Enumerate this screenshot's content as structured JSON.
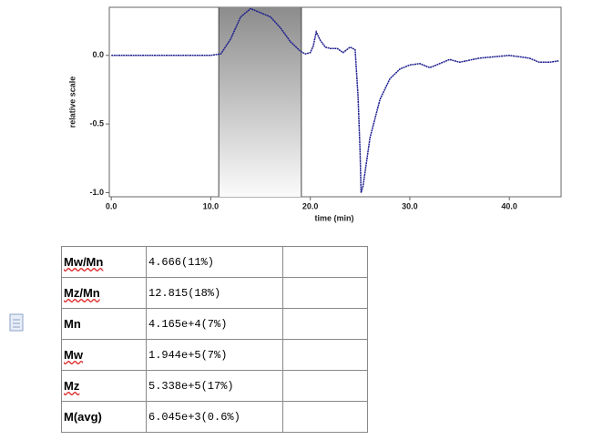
{
  "chart_data": {
    "type": "line",
    "ylabel": "relative scale",
    "xlabel": "time (min)",
    "x": [
      0,
      5,
      10,
      11,
      12,
      13,
      14,
      15,
      16,
      17,
      18,
      19,
      19.5,
      20,
      20.3,
      20.6,
      21,
      21.5,
      22,
      22.7,
      23.3,
      24,
      24.5,
      24.8,
      25,
      25.1,
      25.3,
      25.6,
      26,
      27,
      28,
      29,
      30,
      31,
      32,
      33,
      34,
      35,
      37,
      40,
      42,
      43,
      44,
      45
    ],
    "values": [
      0,
      0,
      0,
      0.01,
      0.12,
      0.28,
      0.34,
      0.31,
      0.28,
      0.2,
      0.1,
      0.03,
      0.01,
      0.02,
      0.07,
      0.17,
      0.11,
      0.06,
      0.05,
      0.05,
      0.02,
      0.06,
      0.04,
      -0.3,
      -0.7,
      -1.0,
      -0.95,
      -0.8,
      -0.6,
      -0.32,
      -0.17,
      -0.1,
      -0.07,
      -0.06,
      -0.09,
      -0.06,
      -0.03,
      -0.05,
      -0.02,
      0,
      -0.02,
      -0.05,
      -0.05,
      -0.04
    ],
    "color": "#1c1c8e",
    "shaded_range": [
      10.8,
      19.1
    ],
    "xlim": [
      -0.2,
      45.2
    ],
    "ylim": [
      -1.03,
      0.35
    ],
    "xticks": [
      {
        "value": 0,
        "label": "0.0"
      },
      {
        "value": 10,
        "label": "10.0"
      },
      {
        "value": 20,
        "label": "20.0"
      },
      {
        "value": 30,
        "label": "30.0"
      },
      {
        "value": 40,
        "label": "40.0"
      }
    ],
    "yticks": [
      {
        "value": 0,
        "label": "0.0"
      },
      {
        "value": -0.5,
        "label": "-0.5"
      },
      {
        "value": -1,
        "label": "-1.0"
      }
    ]
  },
  "table": {
    "rows": [
      [
        "Mw/Mn",
        "4.666(11%)"
      ],
      [
        "Mz/Mn",
        "12.815(18%)"
      ],
      [
        "Mn",
        "4.165e+4(7%)"
      ],
      [
        "Mw",
        "1.944e+5(7%)"
      ],
      [
        "Mz",
        "5.338e+5(17%)"
      ],
      [
        "M(avg)",
        "6.045e+3(0.6%)"
      ]
    ]
  }
}
